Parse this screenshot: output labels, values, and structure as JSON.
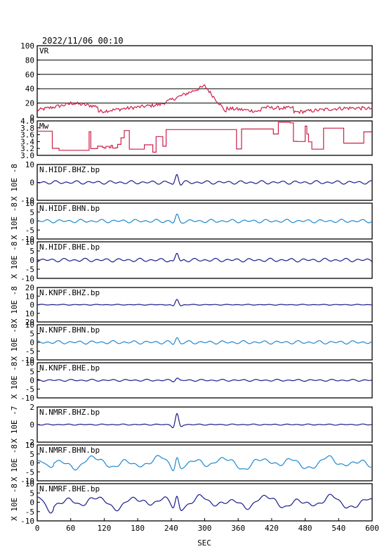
{
  "title": "2022/11/06 00:10",
  "xlabel": "SEC",
  "x_ticks": [
    "0",
    "60",
    "120",
    "180",
    "240",
    "300",
    "360",
    "420",
    "480",
    "540",
    "600"
  ],
  "colors": {
    "red": "#cc1f4a",
    "navy": "#1b1b8a",
    "sky": "#1e88d0",
    "frame": "#000000",
    "grid": "#000000"
  },
  "chart_data": {
    "type": "line",
    "xlim": [
      0,
      600
    ],
    "panels": [
      {
        "id": "vr",
        "label": "VR",
        "color": "red",
        "grid": true,
        "ylim": [
          0,
          100
        ],
        "yticks": [
          "100",
          "80",
          "60",
          "40",
          "20",
          "0"
        ],
        "ylabel": "",
        "shape": "vr"
      },
      {
        "id": "mw",
        "label": "Mw",
        "color": "red",
        "grid": false,
        "ylim": [
          3.0,
          4.0
        ],
        "yticks": [
          "4.0",
          "3.8",
          "3.6",
          "3.4",
          "3.2",
          "3.0"
        ],
        "ylabel": "",
        "shape": "mw"
      },
      {
        "id": "hidf-bhz",
        "label": "N.HIDF.BHZ.bp",
        "color": "navy",
        "grid": false,
        "ylim": [
          -10,
          10
        ],
        "yticks": [
          "10",
          "0",
          "-10"
        ],
        "ylabel": "X 10E -8",
        "shape": "wave",
        "event_amp": 3.5,
        "noise_amp": 1.0,
        "lowfreq": 0.0
      },
      {
        "id": "hidf-bhn",
        "label": "N.HIDF.BHN.bp",
        "color": "sky",
        "grid": false,
        "ylim": [
          -10,
          10
        ],
        "yticks": [
          "10",
          "5",
          "0",
          "-5",
          "-10"
        ],
        "ylabel": "X 10E -8",
        "shape": "wave",
        "event_amp": 2.5,
        "noise_amp": 1.0,
        "lowfreq": 0.0
      },
      {
        "id": "hidf-bhe",
        "label": "N.HIDF.BHE.bp",
        "color": "navy",
        "grid": false,
        "ylim": [
          -10,
          10
        ],
        "yticks": [
          "10",
          "5",
          "0",
          "-5",
          "-10"
        ],
        "ylabel": "X 10E -8",
        "shape": "wave",
        "event_amp": 3.0,
        "noise_amp": 1.0,
        "lowfreq": 0.0
      },
      {
        "id": "knpf-bhz",
        "label": "N.KNPF.BHZ.bp",
        "color": "navy",
        "grid": false,
        "ylim": [
          -20,
          20
        ],
        "yticks": [
          "20",
          "10",
          "0",
          "10",
          "20"
        ],
        "ylabel": "X 10E -8",
        "shape": "wave",
        "event_amp": 5.0,
        "noise_amp": 0.5,
        "lowfreq": 0.0
      },
      {
        "id": "knpf-bhn",
        "label": "N.KNPF.BHN.bp",
        "color": "sky",
        "grid": false,
        "ylim": [
          -10,
          10
        ],
        "yticks": [
          "10",
          "5",
          "0",
          "-5",
          "-10"
        ],
        "ylabel": "X 10E -8",
        "shape": "wave",
        "event_amp": 2.0,
        "noise_amp": 1.0,
        "lowfreq": 0.0
      },
      {
        "id": "knpf-bhe",
        "label": "N.KNPF.BHE.bp",
        "color": "navy",
        "grid": false,
        "ylim": [
          -10,
          10
        ],
        "yticks": [
          "10",
          "5",
          "0",
          "-5",
          "-10"
        ],
        "ylabel": "X 10E -8",
        "shape": "wave",
        "event_amp": 1.0,
        "noise_amp": 0.6,
        "lowfreq": 0.0
      },
      {
        "id": "nmrf-bhz",
        "label": "N.NMRF.BHZ.bp",
        "color": "navy",
        "grid": false,
        "ylim": [
          -3,
          3
        ],
        "yticks": [
          "2",
          "0",
          "-2"
        ],
        "ylabel": "X 10E -7",
        "shape": "wave",
        "event_amp": 1.4,
        "noise_amp": 0.1,
        "lowfreq": 0.0
      },
      {
        "id": "nmrf-bhn",
        "label": "N.NMRF.BHN.bp",
        "color": "sky",
        "grid": false,
        "ylim": [
          -10,
          10
        ],
        "yticks": [
          "10",
          "5",
          "0",
          "-5",
          "-10"
        ],
        "ylabel": "X 10E -8",
        "shape": "wave",
        "event_amp": 4.0,
        "noise_amp": 1.2,
        "lowfreq": 2.2
      },
      {
        "id": "nmrf-bhe",
        "label": "N.NMRF.BHE.bp",
        "color": "navy",
        "grid": false,
        "ylim": [
          -10,
          10
        ],
        "yticks": [
          "10",
          "5",
          "0",
          "-5",
          "-10"
        ],
        "ylabel": "X 10E -8",
        "shape": "wave",
        "event_amp": 4.0,
        "noise_amp": 1.2,
        "lowfreq": 2.2
      }
    ]
  }
}
